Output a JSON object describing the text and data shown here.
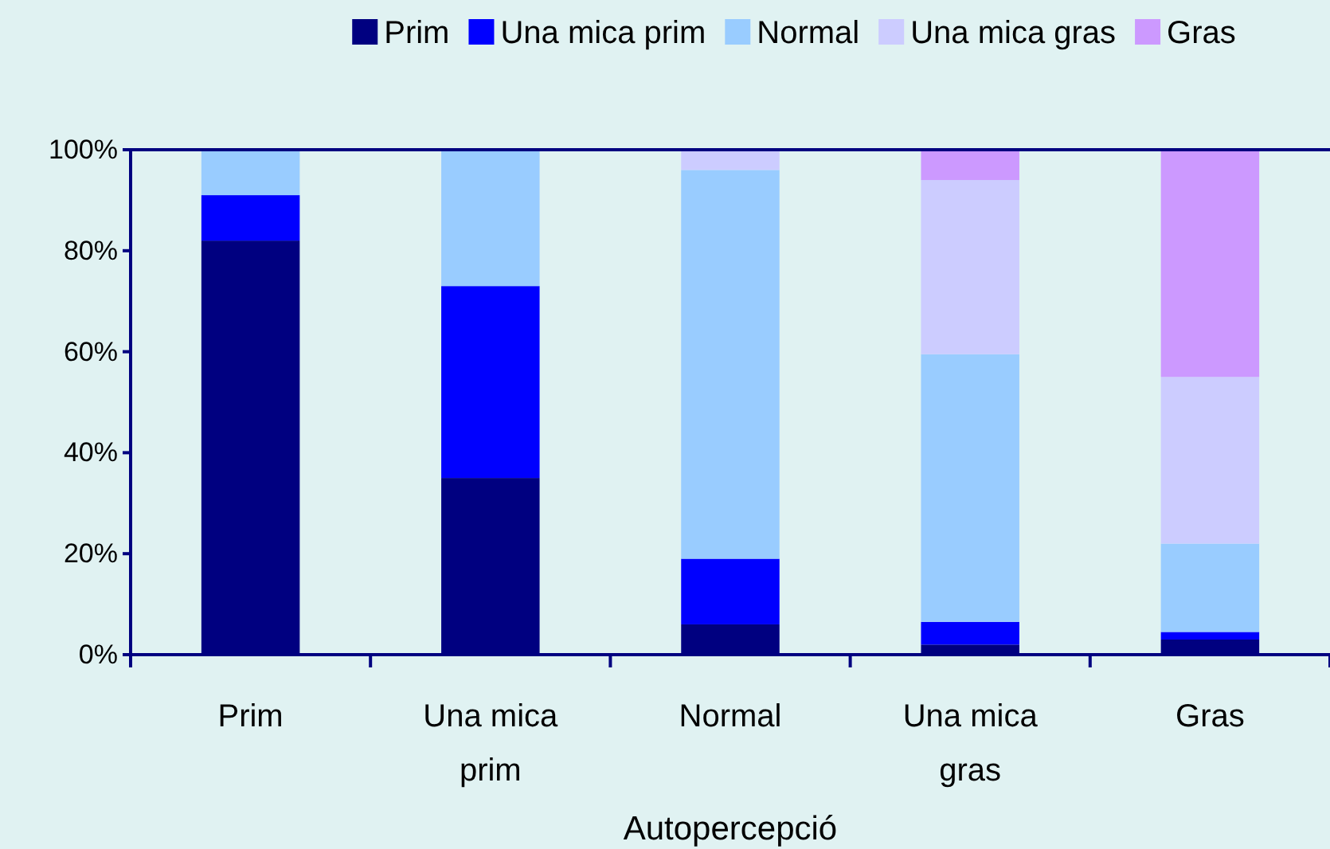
{
  "chart_data": {
    "type": "bar",
    "stacked": true,
    "xlabel": "Autopercepció",
    "categories": [
      "Prim",
      "Una mica prim",
      "Normal",
      "Una mica gras",
      "Gras"
    ],
    "series": [
      {
        "name": "Prim",
        "color": "#000080",
        "values": [
          82,
          35,
          6,
          2,
          3
        ]
      },
      {
        "name": "Una mica prim",
        "color": "#0000ff",
        "values": [
          9,
          38,
          13,
          4.5,
          1.5
        ]
      },
      {
        "name": "Normal",
        "color": "#99ccff",
        "values": [
          9,
          27,
          77,
          53,
          17.5
        ]
      },
      {
        "name": "Una mica gras",
        "color": "#ccccff",
        "values": [
          0,
          0,
          4,
          34.5,
          33
        ]
      },
      {
        "name": "Gras",
        "color": "#cc99ff",
        "values": [
          0,
          0,
          0,
          6,
          45
        ]
      }
    ],
    "ylim": [
      0,
      100
    ],
    "yticks": [
      {
        "value": 0,
        "label": "0%"
      },
      {
        "value": 20,
        "label": "20%"
      },
      {
        "value": 40,
        "label": "40%"
      },
      {
        "value": 60,
        "label": "60%"
      },
      {
        "value": 80,
        "label": "80%"
      },
      {
        "value": 100,
        "label": "100%"
      }
    ],
    "legend": "top",
    "grid": false
  }
}
